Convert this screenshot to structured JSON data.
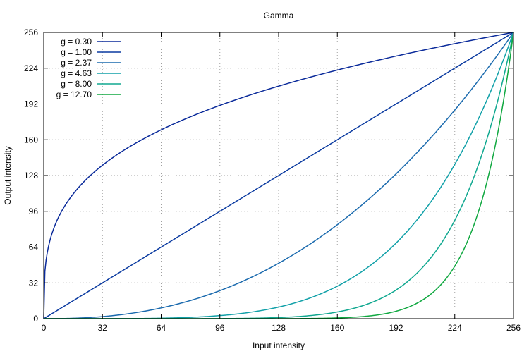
{
  "chart_data": {
    "type": "line",
    "title": "Gamma",
    "xlabel": "Input intensity",
    "ylabel": "Output intensity",
    "xlim": [
      0,
      256
    ],
    "ylim": [
      0,
      256
    ],
    "xticks": [
      0,
      32,
      64,
      96,
      128,
      160,
      192,
      224,
      256
    ],
    "yticks": [
      0,
      32,
      64,
      96,
      128,
      160,
      192,
      224,
      256
    ],
    "grid": true,
    "legend_position": "top-left",
    "series": [
      {
        "name": "g = 0.30",
        "gamma": 0.3,
        "color": "#0a2a9a"
      },
      {
        "name": "g = 1.00",
        "gamma": 1.0,
        "color": "#0a3aa0"
      },
      {
        "name": "g = 2.37",
        "gamma": 2.37,
        "color": "#1a6aae"
      },
      {
        "name": "g = 4.63",
        "gamma": 4.63,
        "color": "#10a0a8"
      },
      {
        "name": "g = 8.00",
        "gamma": 8.0,
        "color": "#10a890"
      },
      {
        "name": "g = 12.70",
        "gamma": 12.7,
        "color": "#10a840"
      }
    ]
  }
}
